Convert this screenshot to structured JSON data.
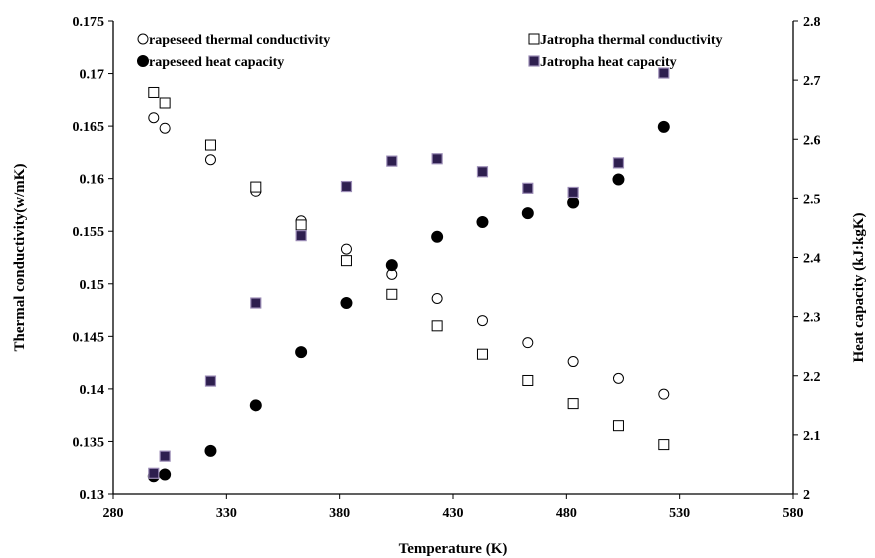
{
  "chart_data": {
    "type": "scatter",
    "xlabel": "Temperature (K)",
    "ylabel": "Thermal conductivity(w/mK)",
    "y2label": "Heat  capacity (kJ:kgK)",
    "xlim": [
      280,
      580
    ],
    "ylim": [
      0.13,
      0.175
    ],
    "y2lim": [
      2,
      2.8
    ],
    "x_ticks": [
      "280",
      "330",
      "380",
      "430",
      "480",
      "530",
      "580"
    ],
    "y_ticks": [
      "0.13",
      "0.135",
      "0.14",
      "0.145",
      "0.15",
      "0.155",
      "0.16",
      "0.165",
      "0.17",
      "0.175"
    ],
    "y2_ticks": [
      "2",
      "2.1",
      "2.2",
      "2.3",
      "2.4",
      "2.5",
      "2.6",
      "2.7",
      "2.8"
    ],
    "grid": false,
    "legend_position": "top",
    "series": [
      {
        "name": "rapeseed thermal conductivity",
        "axis": "left",
        "marker": "circle-open",
        "x": [
          298,
          303,
          323,
          343,
          363,
          383,
          403,
          423,
          443,
          463,
          483,
          503,
          523
        ],
        "y": [
          0.1658,
          0.1648,
          0.1618,
          0.1588,
          0.156,
          0.1533,
          0.1509,
          0.1486,
          0.1465,
          0.1444,
          0.1426,
          0.141,
          0.1395
        ]
      },
      {
        "name": "Jatropha thermal conductivity",
        "axis": "left",
        "marker": "square-open",
        "x": [
          298,
          303,
          323,
          343,
          363,
          383,
          403,
          423,
          443,
          463,
          483,
          503,
          523
        ],
        "y": [
          0.1682,
          0.1672,
          0.1632,
          0.1592,
          0.1556,
          0.1522,
          0.149,
          0.146,
          0.1433,
          0.1408,
          0.1386,
          0.1365,
          0.1347
        ]
      },
      {
        "name": "rapeseed heat capacity",
        "axis": "right",
        "marker": "circle-filled",
        "x": [
          298,
          303,
          323,
          343,
          363,
          383,
          403,
          423,
          443,
          463,
          483,
          503,
          523
        ],
        "y": [
          2.03,
          2.033,
          2.073,
          2.15,
          2.24,
          2.323,
          2.387,
          2.435,
          2.46,
          2.475,
          2.493,
          2.532,
          2.621
        ]
      },
      {
        "name": "Jatropha heat capacity",
        "axis": "right",
        "marker": "square-filled",
        "x": [
          298,
          303,
          323,
          343,
          363,
          383,
          403,
          423,
          443,
          463,
          483,
          503,
          523
        ],
        "y": [
          2.035,
          2.064,
          2.191,
          2.323,
          2.437,
          2.52,
          2.563,
          2.567,
          2.545,
          2.517,
          2.51,
          2.56,
          2.712
        ]
      }
    ],
    "colors": {
      "open_marker_stroke": "#000000",
      "filled_circle": "#000000",
      "filled_square": "#2e1f4f",
      "axis": "#000000"
    }
  }
}
